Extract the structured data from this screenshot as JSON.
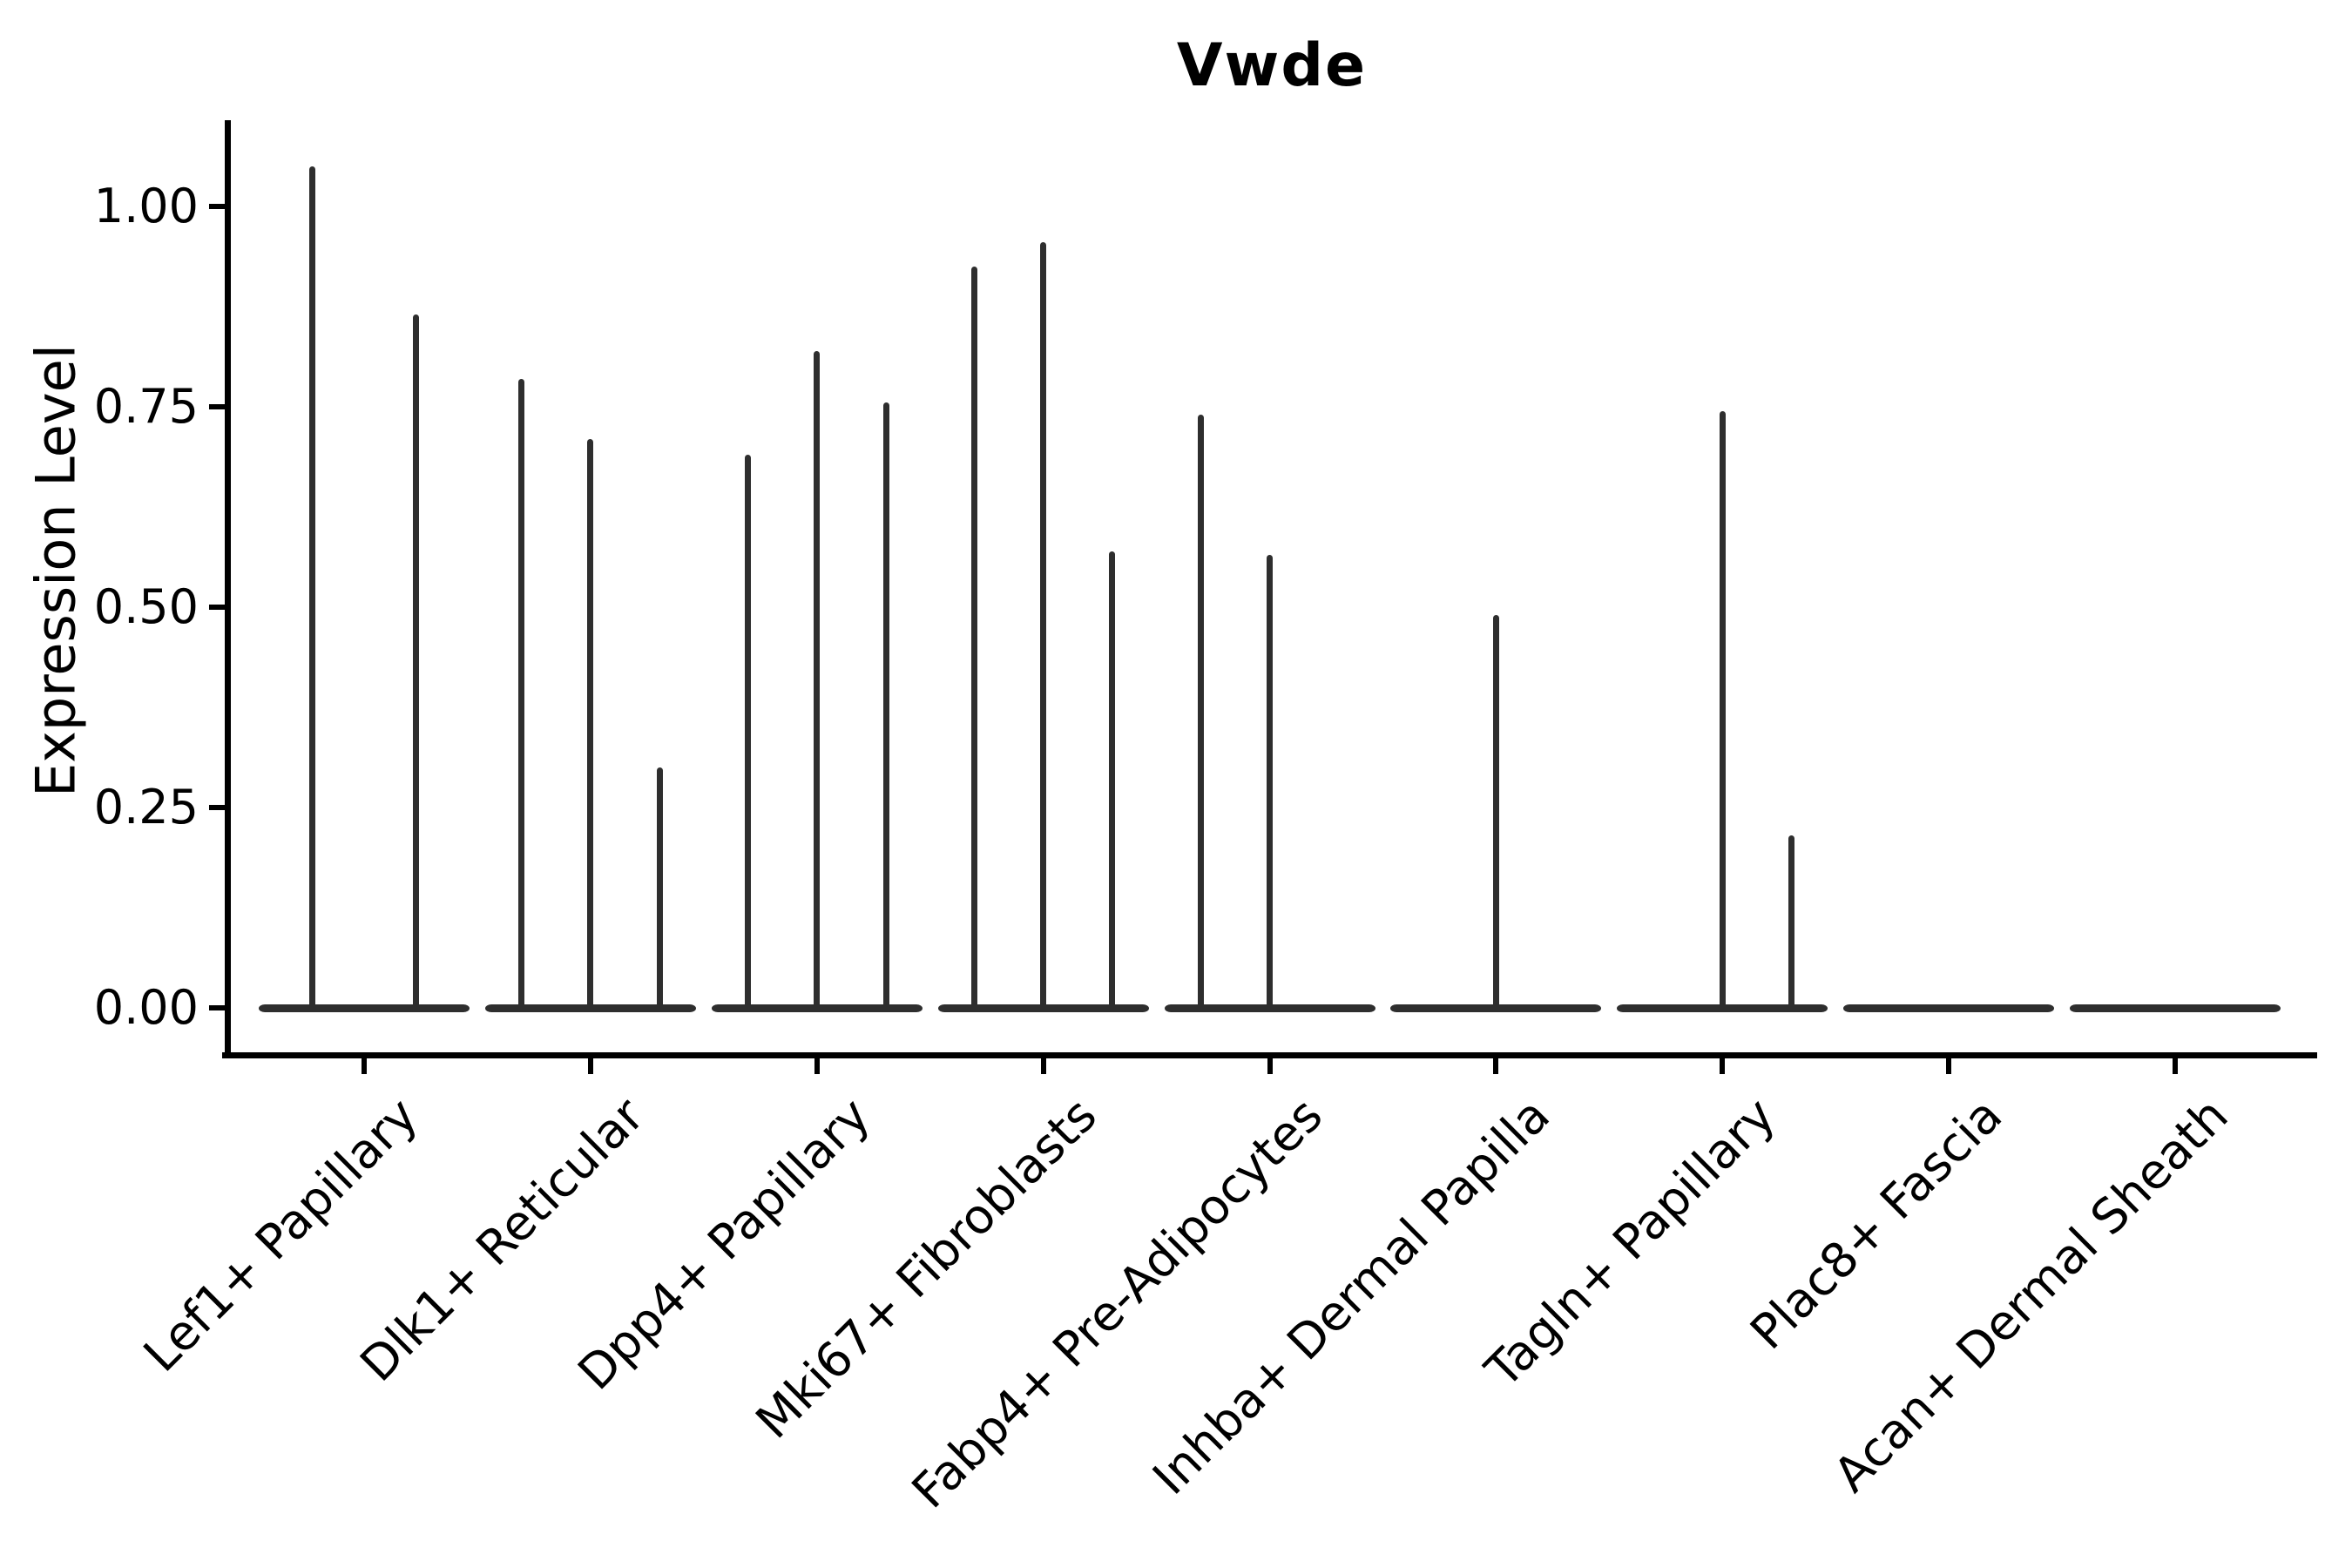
{
  "title": "Vwde",
  "ylabel": "Expression Level",
  "chart_data": {
    "type": "violin",
    "title": "Vwde",
    "xlabel": "",
    "ylabel": "Expression Level",
    "ylim": [
      -0.06,
      1.1
    ],
    "yticks": [
      0.0,
      0.25,
      0.5,
      0.75,
      1.0
    ],
    "ytick_labels": [
      "0.00",
      "0.25",
      "0.50",
      "0.75",
      "1.00"
    ],
    "grid": false,
    "legend": false,
    "violin_color": "#2e2e2e",
    "axis_color": "#000000",
    "note": "Seurat-style stacked violin of gene Vwde; most mass at 0 with thin spikes to max expression; up to 3 dodged violins per cell-type category",
    "categories": [
      {
        "label": "Lef1+ Papillary",
        "n_slots": 2,
        "violins": [
          {
            "slot": 0,
            "max": 1.05
          },
          {
            "slot": 1,
            "max": 0.865
          }
        ]
      },
      {
        "label": "Dlk1+ Reticular",
        "n_slots": 3,
        "violins": [
          {
            "slot": 0,
            "max": 0.785
          },
          {
            "slot": 1,
            "max": 0.71
          },
          {
            "slot": 2,
            "max": 0.3
          }
        ]
      },
      {
        "label": "Dpp4+ Papillary",
        "n_slots": 3,
        "violins": [
          {
            "slot": 0,
            "max": 0.69
          },
          {
            "slot": 1,
            "max": 0.82
          },
          {
            "slot": 2,
            "max": 0.755
          }
        ]
      },
      {
        "label": "Mki67+ Fibroblasts",
        "n_slots": 3,
        "violins": [
          {
            "slot": 0,
            "max": 0.925
          },
          {
            "slot": 1,
            "max": 0.955
          },
          {
            "slot": 2,
            "max": 0.57
          }
        ]
      },
      {
        "label": "Fabp4+ Pre-Adipocytes",
        "n_slots": 3,
        "violins": [
          {
            "slot": 0,
            "max": 0.74
          },
          {
            "slot": 1,
            "max": 0.565
          }
        ]
      },
      {
        "label": "Inhba+ Dermal Papilla",
        "n_slots": 3,
        "violins": [
          {
            "slot": 1,
            "max": 0.49
          }
        ]
      },
      {
        "label": "Tagln+ Papillary",
        "n_slots": 3,
        "violins": [
          {
            "slot": 1,
            "max": 0.745
          },
          {
            "slot": 2,
            "max": 0.215
          }
        ]
      },
      {
        "label": "Plac8+ Fascia",
        "n_slots": 3,
        "violins": []
      },
      {
        "label": "Acan+ Dermal Sheath",
        "n_slots": 3,
        "violins": []
      }
    ]
  }
}
